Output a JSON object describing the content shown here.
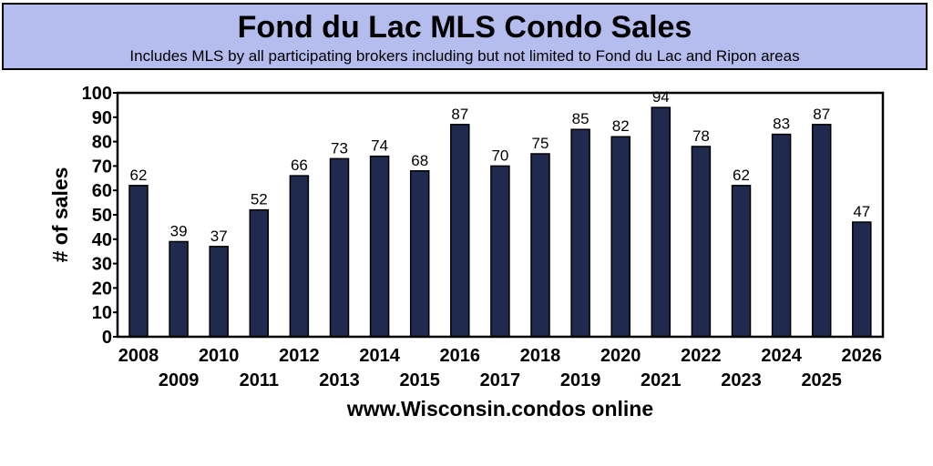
{
  "header": {
    "title": "Fond du Lac MLS Condo Sales",
    "subtitle": "Includes MLS by all participating brokers including but not limited to Fond du Lac and Ripon areas"
  },
  "footer": {
    "text": "www.Wisconsin.condos online"
  },
  "colors": {
    "header_bg": "#b4bdee",
    "bar": "#1f2a4e"
  },
  "chart_data": {
    "type": "bar",
    "title": "",
    "xlabel": "",
    "ylabel": "# of sales",
    "ylim": [
      0,
      100
    ],
    "yticks": [
      0,
      10,
      20,
      30,
      40,
      50,
      60,
      70,
      80,
      90,
      100
    ],
    "grid": false,
    "categories": [
      "2008",
      "2009",
      "2010",
      "2011",
      "2012",
      "2013",
      "2014",
      "2015",
      "2016",
      "2017",
      "2018",
      "2019",
      "2020",
      "2021",
      "2022",
      "2023",
      "2024",
      "2025",
      "2026"
    ],
    "values": [
      62,
      39,
      37,
      52,
      66,
      73,
      74,
      68,
      87,
      70,
      75,
      85,
      82,
      94,
      78,
      62,
      83,
      87,
      47
    ]
  }
}
